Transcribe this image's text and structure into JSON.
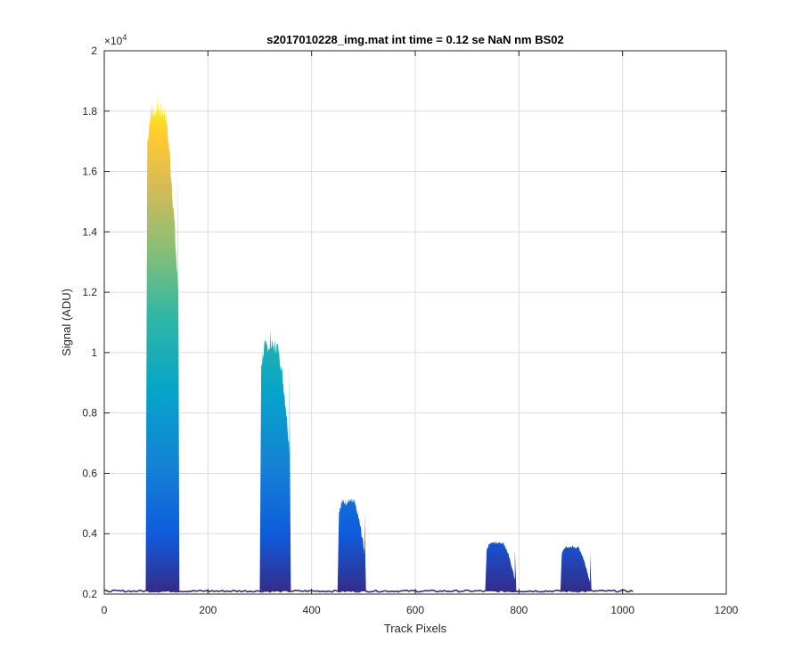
{
  "chart_data": {
    "type": "area",
    "title": "s2017010228_img.mat int time = 0.12 se  NaN nm BS02",
    "xlabel": "Track Pixels",
    "ylabel": "Signal (ADU)",
    "y_exponent_label": "×10",
    "y_exponent_power": "4",
    "xlim": [
      0,
      1200
    ],
    "ylim": [
      2000,
      20000
    ],
    "x_ticks": [
      0,
      200,
      400,
      600,
      800,
      1000,
      1200
    ],
    "x_tick_labels": [
      "0",
      "200",
      "400",
      "600",
      "800",
      "1000",
      "1200"
    ],
    "y_ticks": [
      2000,
      4000,
      6000,
      8000,
      10000,
      12000,
      14000,
      16000,
      18000,
      20000
    ],
    "y_tick_labels": [
      "0.2",
      "0.4",
      "0.6",
      "0.8",
      "1",
      "1.2",
      "1.4",
      "1.6",
      "1.8",
      "2"
    ],
    "grid": true,
    "colormap": "parula",
    "colormap_colors": [
      "#352a87",
      "#0f5cdd",
      "#1481d6",
      "#06a4ca",
      "#2eb7a4",
      "#87bf77",
      "#d1bb59",
      "#fec832",
      "#f9fb0e"
    ],
    "baseline": {
      "x": [
        0,
        1020
      ],
      "value": 2100
    },
    "peaks": [
      {
        "x_start": 80,
        "x_end": 145,
        "peak": 18800,
        "plateau": 18000,
        "noise": 700
      },
      {
        "x_start": 300,
        "x_end": 360,
        "peak": 10800,
        "plateau": 10200,
        "noise": 450
      },
      {
        "x_start": 450,
        "x_end": 505,
        "peak": 5400,
        "plateau": 5050,
        "noise": 250
      },
      {
        "x_start": 735,
        "x_end": 795,
        "peak": 3800,
        "plateau": 3700,
        "noise": 90
      },
      {
        "x_start": 880,
        "x_end": 940,
        "peak": 3650,
        "plateau": 3550,
        "noise": 90
      }
    ]
  }
}
